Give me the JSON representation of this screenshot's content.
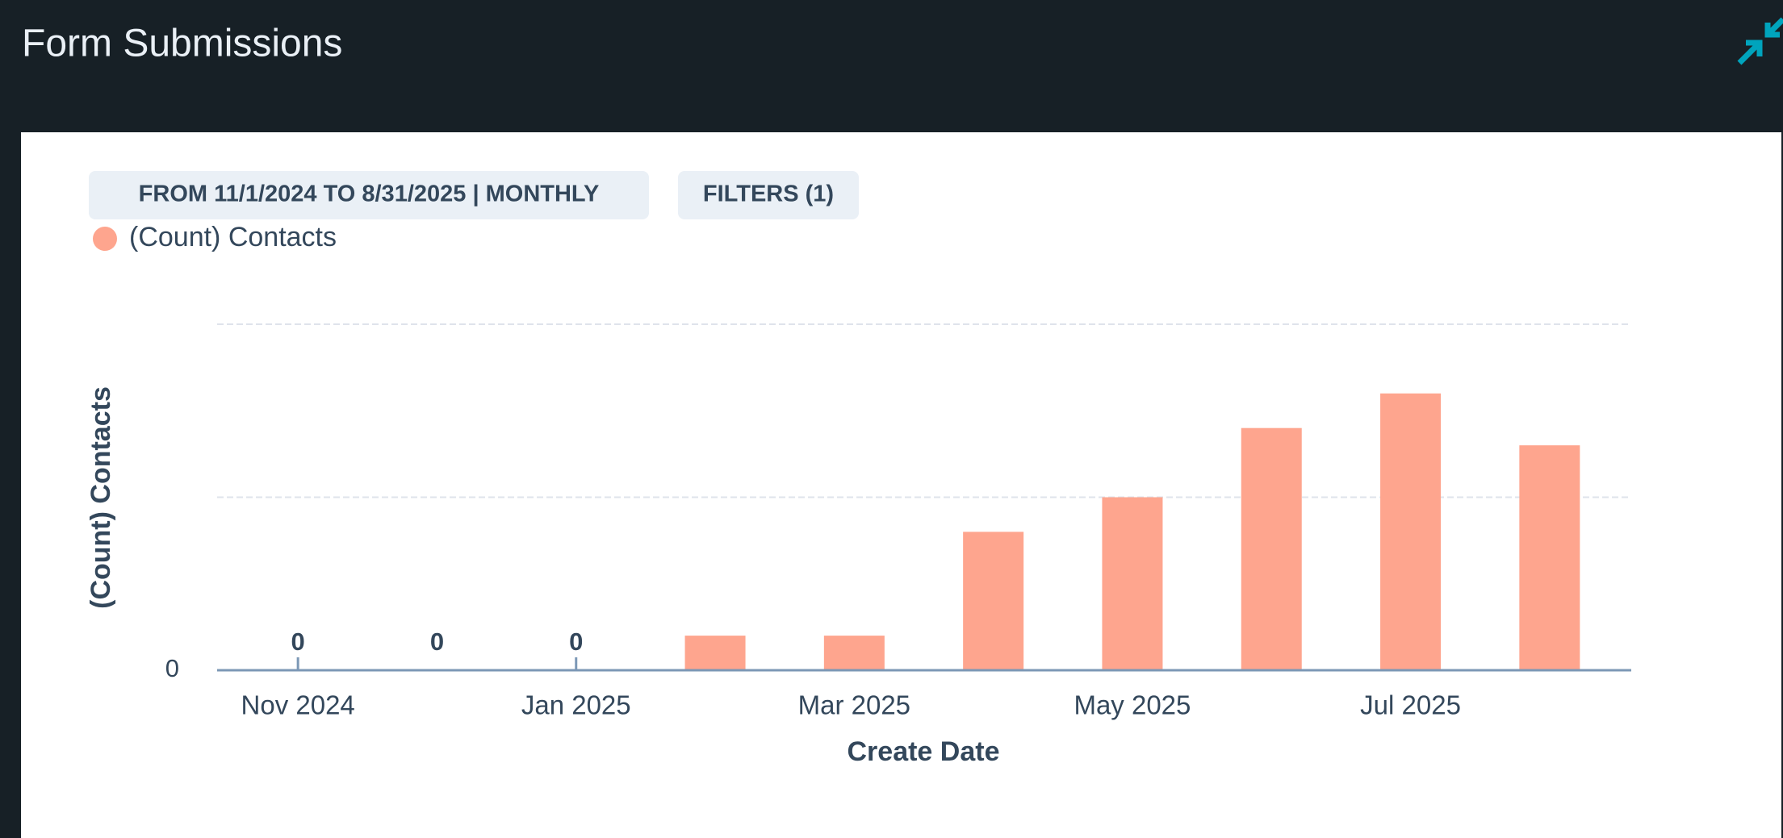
{
  "header": {
    "title": "Form Submissions"
  },
  "chart_data": {
    "type": "bar",
    "date_range_button": "FROM 11/1/2024 TO 8/31/2025 | MONTHLY",
    "filters_button": "FILTERS (1)",
    "x_label": "Create Date",
    "y_label": "(Count) Contacts",
    "categories": [
      "Nov 2024",
      null,
      "Jan 2025",
      null,
      "Mar 2025",
      null,
      "May 2025",
      null,
      "Jul 2025",
      null
    ],
    "series": [
      {
        "name": "(Count) Contacts",
        "color": "#fea58e",
        "values": [
          0,
          0,
          0,
          2,
          2,
          8,
          10,
          14,
          16,
          13
        ]
      }
    ],
    "ylim": [
      0,
      20
    ],
    "yticks": [
      0
    ],
    "gridlines": [
      10,
      20
    ],
    "grid": true
  }
}
